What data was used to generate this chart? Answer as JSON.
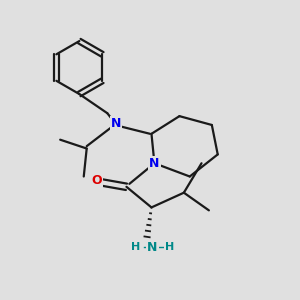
{
  "background_color": "#e0e0e0",
  "bond_color": "#1a1a1a",
  "bond_width": 1.6,
  "N_color": "#0000ee",
  "O_color": "#dd0000",
  "NH2_color": "#008888",
  "font_size": 8.5,
  "fig_size": [
    3.0,
    3.0
  ],
  "dpi": 100,
  "xlim": [
    0,
    10
  ],
  "ylim": [
    0,
    10
  ]
}
